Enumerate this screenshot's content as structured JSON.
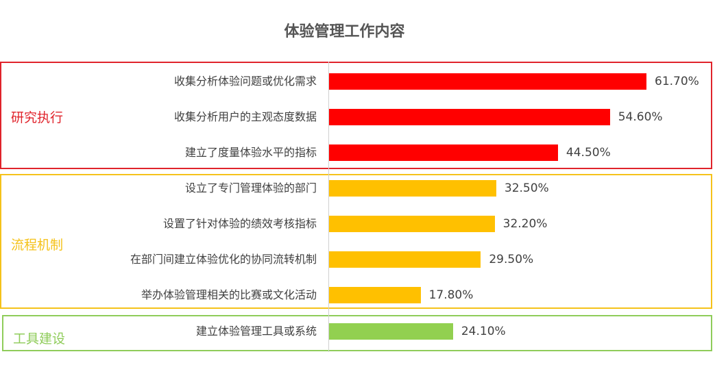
{
  "chart_data": {
    "type": "bar",
    "orientation": "horizontal",
    "title": "体验管理工作内容",
    "xlim": [
      0,
      70
    ],
    "grid": false,
    "groups": [
      {
        "name": "研究执行",
        "color": "#ff0000",
        "box_color": "#e0232b",
        "items": [
          {
            "label": "收集分析体验问题或优化需求",
            "value": 61.7,
            "value_label": "61.70%"
          },
          {
            "label": "收集分析用户的主观态度数据",
            "value": 54.6,
            "value_label": "54.60%"
          },
          {
            "label": "建立了度量体验水平的指标",
            "value": 44.5,
            "value_label": "44.50%"
          }
        ]
      },
      {
        "name": "流程机制",
        "color": "#ffc000",
        "box_color": "#f5c21a",
        "items": [
          {
            "label": "设立了专门管理体验的部门",
            "value": 32.5,
            "value_label": "32.50%"
          },
          {
            "label": "设置了针对体验的绩效考核指标",
            "value": 32.2,
            "value_label": "32.20%"
          },
          {
            "label": "在部门间建立体验优化的协同流转机制",
            "value": 29.5,
            "value_label": "29.50%"
          },
          {
            "label": "举办体验管理相关的比赛或文化活动",
            "value": 17.8,
            "value_label": "17.80%"
          }
        ]
      },
      {
        "name": "工具建设",
        "color": "#92d050",
        "box_color": "#8fcc5a",
        "items": [
          {
            "label": "建立体验管理工具或系统",
            "value": 24.1,
            "value_label": "24.10%"
          }
        ]
      }
    ]
  }
}
